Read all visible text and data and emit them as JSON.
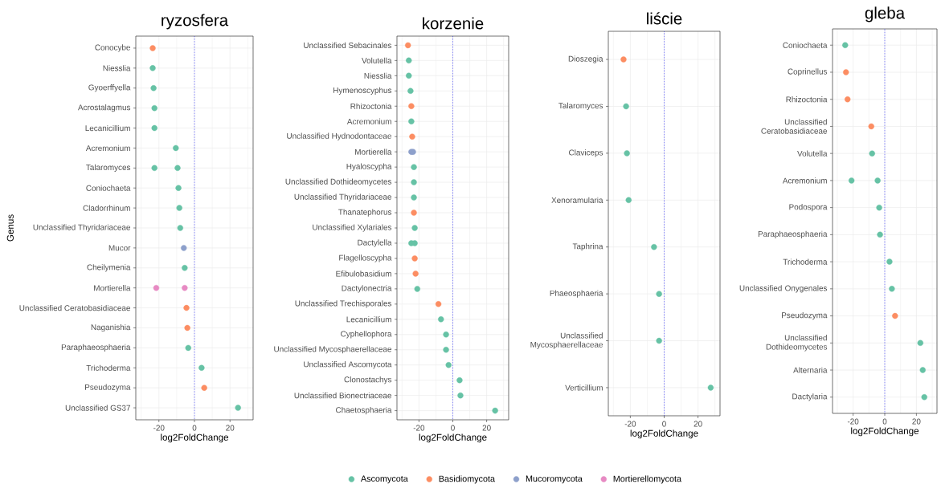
{
  "chart_data": [
    {
      "type": "scatter",
      "orientation": "horizontal",
      "title": "ryzosfera",
      "xlabel": "log2FoldChange",
      "ylabel": "Genus",
      "categories": [
        "Conocybe",
        "Niesslia",
        "Gyoerffyella",
        "Acrostalagmus",
        "Lecanicillium",
        "Acremonium",
        "Talaromyces",
        "Coniochaeta",
        "Cladorrhinum",
        "Unclassified Thyridariaceae",
        "Mucor",
        "Cheilymenia",
        "Mortierella",
        "Unclassified Ceratobasidiaceae",
        "Naganishia",
        "Paraphaeosphaeria",
        "Trichoderma",
        "Pseudozyma",
        "Unclassified GS37"
      ],
      "series": [
        {
          "name": "Ascomycota",
          "color": "#66c2a5",
          "values": [
            null,
            -23.5,
            -23,
            -22.5,
            -22.5,
            -10.5,
            -22.5,
            -9,
            -8.5,
            -8,
            null,
            -5.5,
            null,
            null,
            null,
            -3.5,
            4,
            null,
            24.5
          ]
        },
        {
          "name": "Basidiomycota",
          "color": "#fc8d62",
          "values": [
            -23.5,
            null,
            null,
            null,
            null,
            null,
            null,
            null,
            null,
            null,
            null,
            null,
            null,
            -4.5,
            -4,
            null,
            null,
            5.5,
            null
          ]
        },
        {
          "name": "Mucoromycota",
          "color": "#8da0cb",
          "values": [
            null,
            null,
            null,
            null,
            null,
            null,
            null,
            null,
            null,
            null,
            -6,
            null,
            null,
            null,
            null,
            null,
            null,
            null,
            null
          ]
        },
        {
          "name": "Mortierellomycota",
          "color": "#e78ac3",
          "values": [
            null,
            null,
            null,
            null,
            null,
            null,
            null,
            null,
            null,
            null,
            null,
            null,
            -5.5,
            null,
            null,
            null,
            null,
            null,
            null
          ]
        },
        {
          "color": "#66c2a5",
          "values": [
            null,
            null,
            null,
            null,
            null,
            null,
            -9.5,
            null,
            null,
            null,
            null,
            null,
            null,
            null,
            null,
            null,
            null,
            null,
            null
          ]
        },
        {
          "color": "#e78ac3",
          "values": [
            null,
            null,
            null,
            null,
            null,
            null,
            null,
            null,
            null,
            null,
            null,
            null,
            -21.5,
            null,
            null,
            null,
            null,
            null,
            null
          ]
        }
      ],
      "xlim": [
        -33,
        33
      ],
      "xticks": [
        {
          "value": -30,
          "label": null
        },
        -20,
        {
          "value": -10,
          "label": null
        },
        0,
        {
          "value": 10,
          "label": null
        },
        20,
        {
          "value": 30,
          "label": null
        }
      ],
      "grid": true,
      "marker": "circle",
      "legend": "bottom",
      "ref_lines": [
        {
          "axis": "x",
          "value": 0,
          "color": "#0000ff",
          "line_style": "dotted"
        }
      ]
    },
    {
      "type": "scatter",
      "orientation": "horizontal",
      "title": "korzenie",
      "xlabel": "log2FoldChange",
      "categories": [
        "Unclassified Sebacinales",
        "Volutella",
        "Niesslia",
        "Hymenoscyphus",
        "Rhizoctonia",
        "Acremonium",
        "Unclassified Hydnodontaceae",
        "Mortierella",
        "Hyaloscypha",
        "Unclassified Dothideomycetes",
        "Unclassified Thyridariaceae",
        "Thanatephorus",
        "Unclassified Xylariales",
        "Dactylella",
        "Flagelloscypha",
        "Efibulobasidium",
        "Dactylonectria",
        "Unclassified Trechisporales",
        "Lecanicillium",
        "Cyphellophora",
        "Unclassified Mycosphaerellaceae",
        "Unclassified Ascomycota",
        "Clonostachys",
        "Unclassified Bionectriaceae",
        "Chaetosphaeria"
      ],
      "series": [
        {
          "name": "Ascomycota",
          "color": "#66c2a5",
          "values": [
            null,
            -26,
            -26,
            -25,
            null,
            -24.5,
            null,
            null,
            -23,
            -23,
            -23,
            null,
            -22.5,
            -24.5,
            null,
            null,
            -21,
            null,
            -7,
            -4,
            -4,
            -2.5,
            4,
            4.5,
            25
          ]
        },
        {
          "name": "Basidiomycota",
          "color": "#fc8d62",
          "values": [
            -26.5,
            null,
            null,
            null,
            -24.5,
            null,
            -24,
            null,
            null,
            null,
            null,
            -23,
            null,
            null,
            -22.5,
            -22,
            null,
            -8.5,
            null,
            null,
            null,
            null,
            null,
            null,
            null
          ]
        },
        {
          "name": "Mucoromycota",
          "color": "#8da0cb",
          "values": [
            null,
            null,
            null,
            null,
            null,
            null,
            null,
            -24.5,
            null,
            null,
            null,
            null,
            null,
            null,
            null,
            null,
            null,
            null,
            null,
            null,
            null,
            null,
            null,
            null,
            null
          ]
        },
        {
          "color": "#66c2a5",
          "values": [
            null,
            null,
            null,
            null,
            null,
            null,
            null,
            null,
            null,
            null,
            null,
            null,
            null,
            -22.5,
            null,
            null,
            null,
            null,
            null,
            null,
            null,
            null,
            null,
            null,
            null
          ]
        },
        {
          "color": "#8da0cb",
          "values": [
            null,
            null,
            null,
            null,
            null,
            null,
            null,
            -23.5,
            null,
            null,
            null,
            null,
            null,
            null,
            null,
            null,
            null,
            null,
            null,
            null,
            null,
            null,
            null,
            null,
            null
          ]
        }
      ],
      "xlim": [
        -33,
        33
      ],
      "xticks": [
        {
          "value": -30,
          "label": null
        },
        -20,
        {
          "value": -10,
          "label": null
        },
        0,
        {
          "value": 10,
          "label": null
        },
        20,
        {
          "value": 30,
          "label": null
        }
      ],
      "grid": true,
      "marker": "circle",
      "ref_lines": [
        {
          "axis": "x",
          "value": 0,
          "color": "#0000ff",
          "line_style": "dotted"
        }
      ]
    },
    {
      "type": "scatter",
      "orientation": "horizontal",
      "title": "liście",
      "xlabel": "log2FoldChange",
      "categories": [
        "Dioszegia",
        "Talaromyces",
        "Claviceps",
        "Xenoramularia",
        "Taphrina",
        "Phaeosphaeria",
        "Unclassified Mycosphaerellaceae",
        "Verticillium"
      ],
      "series": [
        {
          "name": "Ascomycota",
          "color": "#66c2a5",
          "values": [
            null,
            -22.5,
            -22,
            -21,
            -6,
            -3,
            -3,
            27.5
          ]
        },
        {
          "name": "Basidiomycota",
          "color": "#fc8d62",
          "values": [
            -24,
            null,
            null,
            null,
            null,
            null,
            null,
            null
          ]
        }
      ],
      "xlim": [
        -33,
        33
      ],
      "xticks": [
        {
          "value": -30,
          "label": null
        },
        -20,
        {
          "value": -10,
          "label": null
        },
        0,
        {
          "value": 10,
          "label": null
        },
        20,
        {
          "value": 30,
          "label": null
        }
      ],
      "grid": true,
      "marker": "circle",
      "ref_lines": [
        {
          "axis": "x",
          "value": 0,
          "color": "#0000ff",
          "line_style": "dotted"
        }
      ]
    },
    {
      "type": "scatter",
      "orientation": "horizontal",
      "title": "gleba",
      "xlabel": "log2FoldChange",
      "categories": [
        "Coniochaeta",
        "Coprinellus",
        "Rhizoctonia",
        "Unclassified Ceratobasidiaceae",
        "Volutella",
        "Acremonium",
        "Podospora",
        "Paraphaeosphaeria",
        "Trichoderma",
        "Unclassified Onygenales",
        "Pseudozyma",
        "Unclassified Dothideomycetes",
        "Alternaria",
        "Dactylaria"
      ],
      "series": [
        {
          "name": "Ascomycota",
          "color": "#66c2a5",
          "values": [
            -25,
            null,
            null,
            null,
            -8,
            -21,
            -3.5,
            -3,
            3,
            4.5,
            null,
            22.5,
            24,
            25
          ]
        },
        {
          "name": "Basidiomycota",
          "color": "#fc8d62",
          "values": [
            null,
            -24.5,
            -23.5,
            -8.5,
            null,
            null,
            null,
            null,
            null,
            null,
            6.5,
            null,
            null,
            null
          ]
        },
        {
          "color": "#66c2a5",
          "values": [
            null,
            null,
            null,
            null,
            null,
            -4.5,
            null,
            null,
            null,
            null,
            null,
            null,
            null,
            null
          ]
        }
      ],
      "xlim": [
        -33,
        33
      ],
      "xticks": [
        {
          "value": -30,
          "label": null
        },
        -20,
        {
          "value": -10,
          "label": null
        },
        0,
        {
          "value": 10,
          "label": null
        },
        20,
        {
          "value": 30,
          "label": null
        }
      ],
      "grid": true,
      "marker": "circle",
      "ref_lines": [
        {
          "axis": "x",
          "value": 0,
          "color": "#0000ff",
          "line_style": "dotted"
        }
      ]
    }
  ]
}
